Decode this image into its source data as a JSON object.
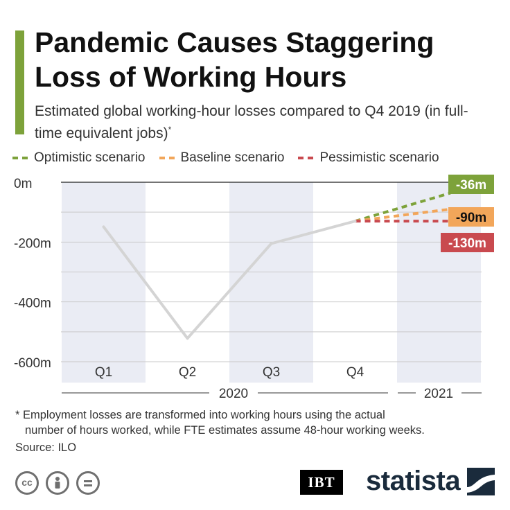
{
  "header": {
    "title": "Pandemic Causes Staggering Loss of Working Hours",
    "subtitle": "Estimated global working-hour losses compared to Q4 2019 (in full-time equivalent jobs)",
    "subtitle_mark": "*"
  },
  "legend": [
    {
      "label": "Optimistic scenario",
      "color": "#7da23a"
    },
    {
      "label": "Baseline scenario",
      "color": "#f2a65a"
    },
    {
      "label": "Pessimistic scenario",
      "color": "#c94a4f"
    }
  ],
  "chart_data": {
    "type": "line",
    "title": "",
    "xlabel": "",
    "ylabel": "",
    "x": [
      "Q1",
      "Q2",
      "Q3",
      "Q4"
    ],
    "year_labels": [
      "2020",
      "2021"
    ],
    "yticks": [
      0,
      -200,
      -400,
      -600
    ],
    "ytick_labels": [
      "0m",
      "-200m",
      "-400m",
      "-600m"
    ],
    "ylim": [
      -670,
      0
    ],
    "grid": true,
    "series": [
      {
        "name": "",
        "values": [
          -149,
          -522,
          -205,
          -130
        ],
        "color": "#d4d4d4",
        "style": "solid"
      }
    ],
    "scenarios": [
      {
        "name": "Optimistic scenario",
        "start": -130,
        "end": -36,
        "label": "-36m",
        "color": "#7da23a"
      },
      {
        "name": "Baseline scenario",
        "start": -130,
        "end": -90,
        "label": "-90m",
        "color": "#f2a65a"
      },
      {
        "name": "Pessimistic scenario",
        "start": -130,
        "end": -130,
        "label": "-130m",
        "color": "#c94a4f"
      }
    ]
  },
  "footnote": {
    "line1": "* Employment losses are transformed into working hours using the actual",
    "line2": "number of hours worked, while FTE estimates assume 48-hour working weeks."
  },
  "source": "Source: ILO",
  "logos": {
    "ibt": "IBT",
    "statista": "statista",
    "license_icons": [
      "cc-icon",
      "by-icon",
      "nd-icon"
    ]
  }
}
